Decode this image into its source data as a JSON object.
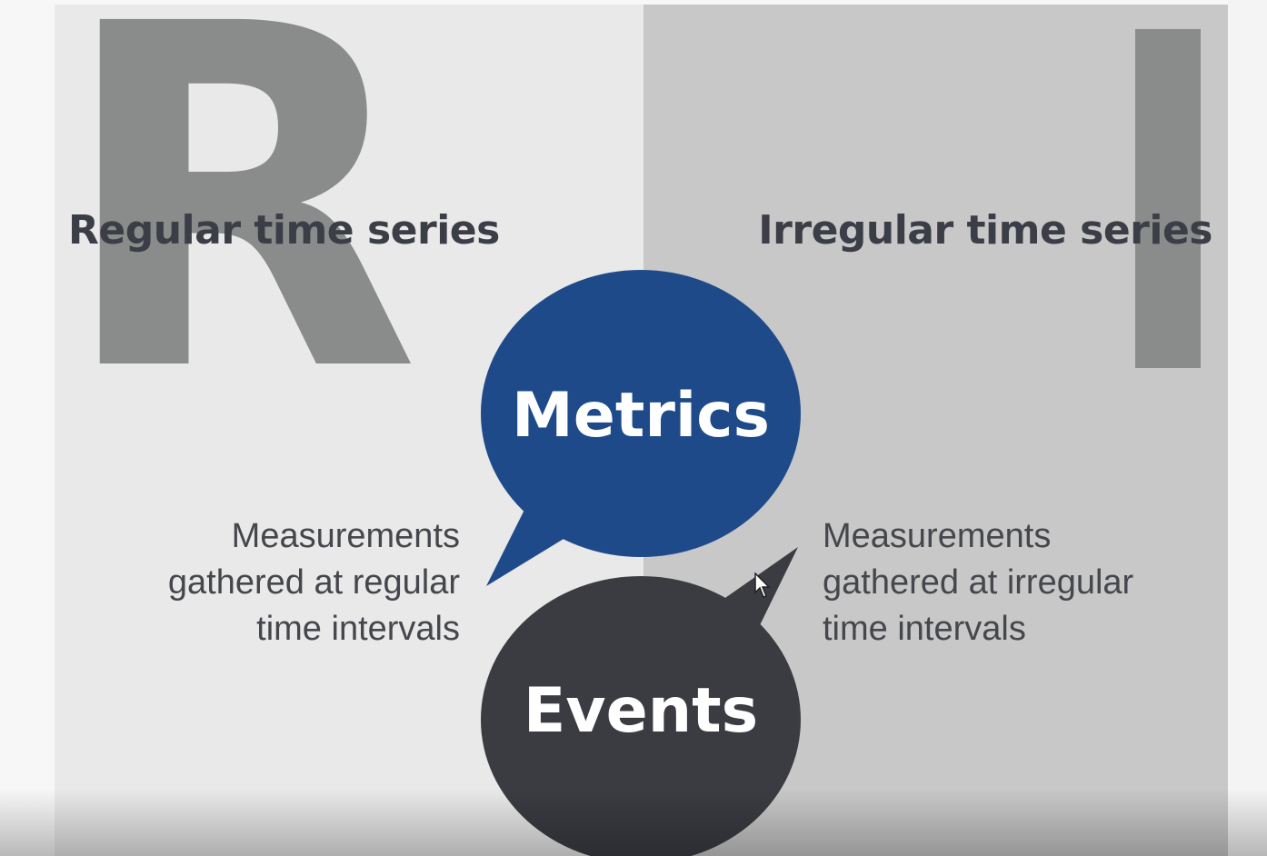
{
  "left": {
    "letter": "R",
    "title": "Regular time series",
    "description": [
      "Measurements",
      "gathered at regular",
      "time intervals"
    ]
  },
  "right": {
    "letter": "I",
    "title": "Irregular time series",
    "description": [
      "Measurements",
      "gathered at irregular",
      "time intervals"
    ]
  },
  "bubbles": {
    "metrics": {
      "label": "Metrics",
      "color": "#1e4a8a"
    },
    "events": {
      "label": "Events",
      "color": "#3a3c42"
    }
  },
  "icons": {
    "cursor": "mouse-pointer-icon"
  }
}
